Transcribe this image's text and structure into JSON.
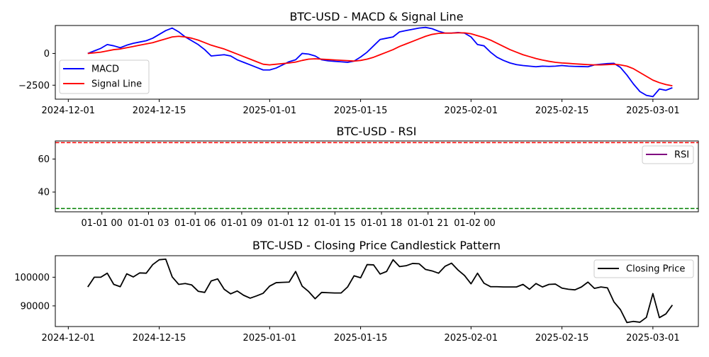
{
  "chart_data": [
    {
      "type": "line",
      "title": "BTC-USD - MACD & Signal Line",
      "xlabel": "",
      "ylabel": "",
      "x_axis": "date",
      "xlim": [
        "2024-11-29",
        "2025-03-08"
      ],
      "ylim": [
        -3600,
        2200
      ],
      "xticks": [
        "2024-12-01",
        "2024-12-15",
        "2025-01-01",
        "2025-01-15",
        "2025-02-01",
        "2025-02-15",
        "2025-03-01"
      ],
      "yticks": [
        0,
        -2500
      ],
      "ytick_labels": [
        "0",
        "−2500"
      ],
      "legend": "lower-left",
      "x": [
        "2024-12-04",
        "2024-12-05",
        "2024-12-06",
        "2024-12-07",
        "2024-12-08",
        "2024-12-09",
        "2024-12-10",
        "2024-12-11",
        "2024-12-12",
        "2024-12-13",
        "2024-12-14",
        "2024-12-15",
        "2024-12-16",
        "2024-12-17",
        "2024-12-18",
        "2024-12-19",
        "2024-12-20",
        "2024-12-21",
        "2024-12-22",
        "2024-12-23",
        "2024-12-24",
        "2024-12-25",
        "2024-12-26",
        "2024-12-27",
        "2024-12-28",
        "2024-12-29",
        "2024-12-30",
        "2024-12-31",
        "2025-01-01",
        "2025-01-02",
        "2025-01-03",
        "2025-01-04",
        "2025-01-05",
        "2025-01-06",
        "2025-01-07",
        "2025-01-08",
        "2025-01-09",
        "2025-01-10",
        "2025-01-11",
        "2025-01-12",
        "2025-01-13",
        "2025-01-14",
        "2025-01-15",
        "2025-01-16",
        "2025-01-17",
        "2025-01-18",
        "2025-01-19",
        "2025-01-20",
        "2025-01-21",
        "2025-01-22",
        "2025-01-23",
        "2025-01-24",
        "2025-01-25",
        "2025-01-26",
        "2025-01-27",
        "2025-01-28",
        "2025-01-29",
        "2025-01-30",
        "2025-01-31",
        "2025-02-01",
        "2025-02-02",
        "2025-02-03",
        "2025-02-04",
        "2025-02-05",
        "2025-02-06",
        "2025-02-07",
        "2025-02-08",
        "2025-02-09",
        "2025-02-10",
        "2025-02-11",
        "2025-02-12",
        "2025-02-13",
        "2025-02-14",
        "2025-02-15",
        "2025-02-16",
        "2025-02-17",
        "2025-02-18",
        "2025-02-19",
        "2025-02-20",
        "2025-02-21",
        "2025-02-22",
        "2025-02-23",
        "2025-02-24",
        "2025-02-25",
        "2025-02-26",
        "2025-02-27",
        "2025-02-28",
        "2025-03-01",
        "2025-03-02",
        "2025-03-03",
        "2025-03-04"
      ],
      "series": [
        {
          "name": "MACD",
          "color": "#0000ff",
          "values": [
            0,
            200,
            400,
            700,
            600,
            450,
            650,
            800,
            900,
            1000,
            1200,
            1500,
            1800,
            2000,
            1700,
            1300,
            1000,
            700,
            300,
            -200,
            -150,
            -100,
            -200,
            -500,
            -700,
            -900,
            -1100,
            -1300,
            -1300,
            -1150,
            -900,
            -650,
            -500,
            0,
            -50,
            -200,
            -500,
            -580,
            -620,
            -660,
            -700,
            -600,
            -280,
            100,
            600,
            1100,
            1200,
            1300,
            1700,
            1800,
            1900,
            2000,
            2050,
            1950,
            1750,
            1600,
            1600,
            1650,
            1600,
            1300,
            700,
            600,
            100,
            -300,
            -550,
            -750,
            -880,
            -950,
            -1000,
            -1050,
            -1000,
            -1020,
            -1000,
            -950,
            -1000,
            -1020,
            -1030,
            -1050,
            -900,
            -850,
            -800,
            -780,
            -1100,
            -1700,
            -2400,
            -3000,
            -3300,
            -3400,
            -2800,
            -2900,
            -2700
          ]
        },
        {
          "name": "Signal Line",
          "color": "#ff0000",
          "values": [
            0,
            50,
            100,
            200,
            300,
            350,
            450,
            550,
            650,
            750,
            850,
            1000,
            1150,
            1300,
            1350,
            1300,
            1200,
            1050,
            850,
            650,
            500,
            350,
            150,
            -50,
            -250,
            -450,
            -650,
            -850,
            -900,
            -850,
            -800,
            -750,
            -680,
            -550,
            -450,
            -420,
            -450,
            -480,
            -510,
            -540,
            -570,
            -600,
            -550,
            -450,
            -300,
            -100,
            100,
            300,
            550,
            750,
            950,
            1150,
            1350,
            1500,
            1580,
            1600,
            1600,
            1620,
            1620,
            1550,
            1400,
            1250,
            1050,
            800,
            550,
            300,
            100,
            -100,
            -250,
            -400,
            -520,
            -620,
            -700,
            -750,
            -780,
            -820,
            -850,
            -880,
            -900,
            -900,
            -880,
            -850,
            -900,
            -1000,
            -1200,
            -1500,
            -1800,
            -2100,
            -2300,
            -2450,
            -2550
          ]
        }
      ]
    },
    {
      "type": "line",
      "title": "BTC-USD - RSI",
      "xlabel": "",
      "ylabel": "",
      "xlim": [
        -0.125,
        1.6
      ],
      "ylim": [
        28,
        71
      ],
      "xticks": [
        0,
        3,
        6,
        9,
        12,
        15,
        18,
        21,
        24
      ],
      "xtick_labels": [
        "01-01 00",
        "01-01 03",
        "01-01 06",
        "01-01 09",
        "01-01 12",
        "01-01 15",
        "01-01 18",
        "01-01 21",
        "01-02 00"
      ],
      "yticks": [
        40,
        60
      ],
      "ytick_labels": [
        "40",
        "60"
      ],
      "legend": "upper-right",
      "series": [
        {
          "name": "RSI",
          "color": "#800080",
          "values": []
        }
      ],
      "hlines": [
        {
          "y": 70,
          "color": "#ff0000",
          "style": "dashed"
        },
        {
          "y": 30,
          "color": "#008000",
          "style": "dashed"
        }
      ]
    },
    {
      "type": "line",
      "title": "BTC-USD - Closing Price Candlestick Pattern",
      "xlabel": "",
      "ylabel": "",
      "x_axis": "date",
      "xlim": [
        "2024-11-29",
        "2025-03-08"
      ],
      "ylim": [
        82800,
        107500
      ],
      "xticks": [
        "2024-12-01",
        "2024-12-15",
        "2025-01-01",
        "2025-01-15",
        "2025-02-01",
        "2025-02-15",
        "2025-03-01"
      ],
      "yticks": [
        90000,
        100000
      ],
      "ytick_labels": [
        "90000",
        "100000"
      ],
      "legend": "upper-right",
      "x": [
        "2024-12-04",
        "2024-12-05",
        "2024-12-06",
        "2024-12-07",
        "2024-12-08",
        "2024-12-09",
        "2024-12-10",
        "2024-12-11",
        "2024-12-12",
        "2024-12-13",
        "2024-12-14",
        "2024-12-15",
        "2024-12-16",
        "2024-12-17",
        "2024-12-18",
        "2024-12-19",
        "2024-12-20",
        "2024-12-21",
        "2024-12-22",
        "2024-12-23",
        "2024-12-24",
        "2024-12-25",
        "2024-12-26",
        "2024-12-27",
        "2024-12-28",
        "2024-12-29",
        "2024-12-30",
        "2024-12-31",
        "2025-01-01",
        "2025-01-02",
        "2025-01-03",
        "2025-01-04",
        "2025-01-05",
        "2025-01-06",
        "2025-01-07",
        "2025-01-08",
        "2025-01-09",
        "2025-01-10",
        "2025-01-11",
        "2025-01-12",
        "2025-01-13",
        "2025-01-14",
        "2025-01-15",
        "2025-01-16",
        "2025-01-17",
        "2025-01-18",
        "2025-01-19",
        "2025-01-20",
        "2025-01-21",
        "2025-01-22",
        "2025-01-23",
        "2025-01-24",
        "2025-01-25",
        "2025-01-26",
        "2025-01-27",
        "2025-01-28",
        "2025-01-29",
        "2025-01-30",
        "2025-01-31",
        "2025-02-01",
        "2025-02-02",
        "2025-02-03",
        "2025-02-04",
        "2025-02-05",
        "2025-02-06",
        "2025-02-07",
        "2025-02-08",
        "2025-02-09",
        "2025-02-10",
        "2025-02-11",
        "2025-02-12",
        "2025-02-13",
        "2025-02-14",
        "2025-02-15",
        "2025-02-16",
        "2025-02-17",
        "2025-02-18",
        "2025-02-19",
        "2025-02-20",
        "2025-02-21",
        "2025-02-22",
        "2025-02-23",
        "2025-02-24",
        "2025-02-25",
        "2025-02-26",
        "2025-02-27",
        "2025-02-28",
        "2025-03-01",
        "2025-03-02",
        "2025-03-03",
        "2025-03-04"
      ],
      "series": [
        {
          "name": "Closing Price",
          "color": "#000000",
          "values": [
            96600,
            100000,
            100000,
            101400,
            97500,
            96700,
            101200,
            100100,
            101500,
            101400,
            104400,
            106100,
            106300,
            100100,
            97500,
            97800,
            97300,
            95100,
            94700,
            98700,
            99400,
            95800,
            94200,
            95200,
            93700,
            92700,
            93500,
            94400,
            96900,
            98100,
            98200,
            98300,
            102000,
            96900,
            95000,
            92500,
            94700,
            94600,
            94500,
            94500,
            96600,
            100500,
            99800,
            104400,
            104300,
            101100,
            102000,
            106100,
            103700,
            104000,
            104800,
            104700,
            102700,
            102200,
            101400,
            103800,
            104900,
            102500,
            100600,
            97700,
            101400,
            97900,
            96700,
            96700,
            96600,
            96600,
            96600,
            97500,
            95800,
            97800,
            96600,
            97500,
            97600,
            96200,
            95800,
            95600,
            96600,
            98300,
            96100,
            96600,
            96300,
            91400,
            88700,
            84200,
            84600,
            84300,
            86000,
            94300,
            85900,
            87200,
            90300
          ]
        }
      ]
    }
  ]
}
